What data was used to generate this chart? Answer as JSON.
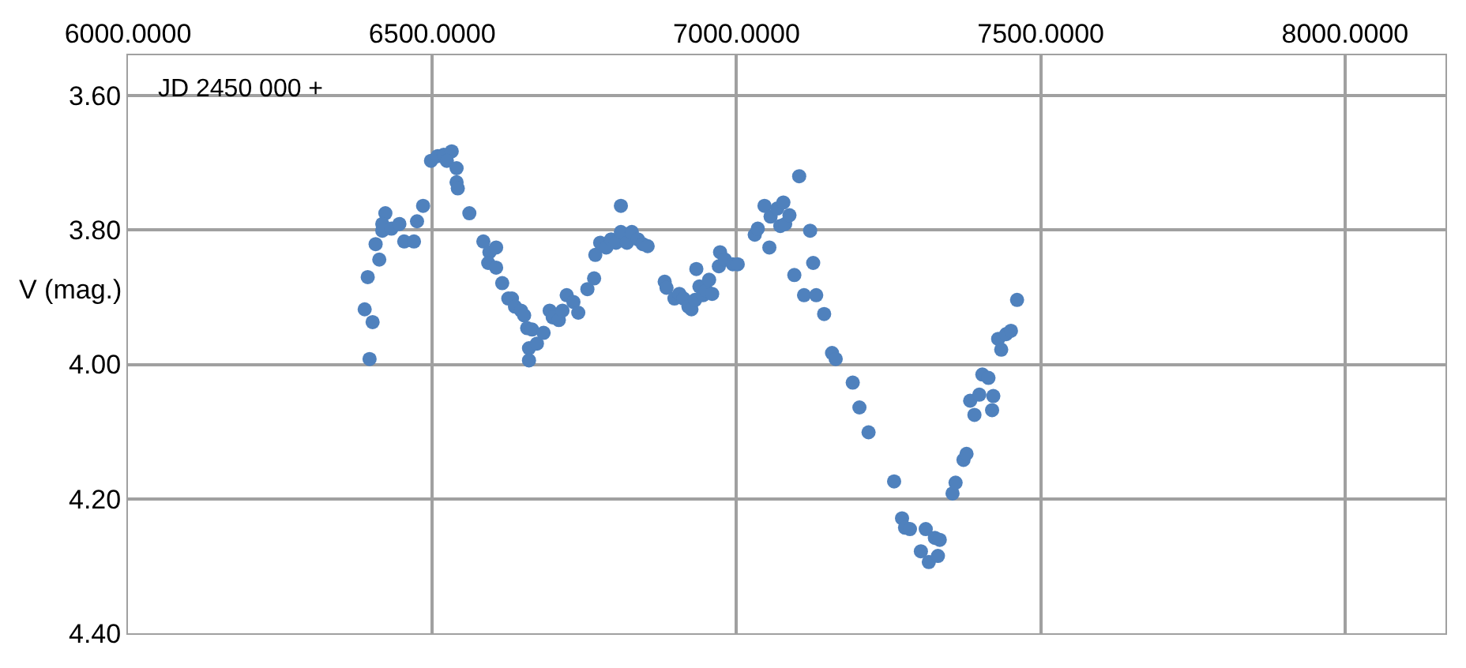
{
  "chart_data": {
    "type": "scatter",
    "ylabel": "V (mag.)",
    "annotations": [
      "JD 2450 000 +"
    ],
    "x": [
      6389,
      6397,
      6394,
      6402,
      6407,
      6413,
      6418,
      6423,
      6418,
      6433,
      6446,
      6454,
      6470,
      6475,
      6485,
      6498,
      6509,
      6519,
      6532,
      6524,
      6540,
      6540,
      6542,
      6561,
      6584,
      6594,
      6592,
      6605,
      6605,
      6615,
      6625,
      6631,
      6636,
      6646,
      6651,
      6656,
      6659,
      6659,
      6672,
      6664,
      6683,
      6693,
      6698,
      6708,
      6714,
      6721,
      6732,
      6740,
      6755,
      6766,
      6768,
      6776,
      6786,
      6794,
      6802,
      6810,
      6810,
      6820,
      6828,
      6838,
      6846,
      6854,
      6882,
      6885,
      6898,
      6906,
      6913,
      6921,
      6926,
      6932,
      6934,
      6939,
      6945,
      6950,
      6955,
      6960,
      6971,
      6973,
      6981,
      6994,
      7002,
      7030,
      7035,
      7046,
      7054,
      7056,
      7067,
      7072,
      7077,
      7080,
      7087,
      7095,
      7103,
      7111,
      7121,
      7126,
      7131,
      7144,
      7157,
      7163,
      7191,
      7202,
      7217,
      7259,
      7272,
      7277,
      7285,
      7303,
      7311,
      7316,
      7326,
      7331,
      7334,
      7355,
      7360,
      7373,
      7378,
      7384,
      7391,
      7399,
      7404,
      7414,
      7420,
      7422,
      7430,
      7435,
      7443,
      7451,
      7461
    ],
    "values": [
      3.918,
      3.992,
      3.87,
      3.937,
      3.821,
      3.844,
      3.801,
      3.775,
      3.791,
      3.798,
      3.791,
      3.817,
      3.817,
      3.787,
      3.764,
      3.697,
      3.69,
      3.688,
      3.683,
      3.697,
      3.708,
      3.729,
      3.738,
      3.775,
      3.817,
      3.833,
      3.849,
      3.826,
      3.856,
      3.879,
      3.902,
      3.902,
      3.914,
      3.92,
      3.927,
      3.946,
      3.976,
      3.994,
      3.969,
      3.948,
      3.953,
      3.92,
      3.93,
      3.934,
      3.92,
      3.897,
      3.907,
      3.923,
      3.888,
      3.872,
      3.837,
      3.819,
      3.826,
      3.814,
      3.819,
      3.803,
      3.764,
      3.819,
      3.803,
      3.814,
      3.821,
      3.824,
      3.877,
      3.886,
      3.902,
      3.895,
      3.902,
      3.914,
      3.918,
      3.904,
      3.858,
      3.884,
      3.897,
      3.89,
      3.874,
      3.895,
      3.854,
      3.833,
      3.844,
      3.851,
      3.851,
      3.807,
      3.798,
      3.764,
      3.826,
      3.78,
      3.768,
      3.794,
      3.759,
      3.791,
      3.778,
      3.867,
      3.72,
      3.897,
      3.801,
      3.849,
      3.897,
      3.925,
      3.983,
      3.992,
      4.027,
      4.064,
      4.101,
      4.174,
      4.229,
      4.243,
      4.245,
      4.278,
      4.245,
      4.294,
      4.258,
      4.285,
      4.261,
      4.192,
      4.176,
      4.142,
      4.133,
      4.054,
      4.075,
      4.045,
      4.015,
      4.02,
      4.068,
      4.047,
      3.962,
      3.978,
      3.955,
      3.95,
      3.904
    ],
    "color": "#4f81bd",
    "marker": "circle",
    "xlim": [
      6000,
      8165
    ],
    "ylim": [
      4.4,
      3.54
    ],
    "xticks": [
      {
        "value": 6000,
        "label": "6000.0000"
      },
      {
        "value": 6500,
        "label": "6500.0000"
      },
      {
        "value": 7000,
        "label": "7000.0000"
      },
      {
        "value": 7500,
        "label": "7500.0000"
      },
      {
        "value": 8000,
        "label": "8000.0000"
      }
    ],
    "yticks": [
      {
        "value": 3.6,
        "label": "3.60"
      },
      {
        "value": 3.8,
        "label": "3.80"
      },
      {
        "value": 4.0,
        "label": "4.00"
      },
      {
        "value": 4.2,
        "label": "4.20"
      },
      {
        "value": 4.4,
        "label": "4.40"
      }
    ],
    "grid": true,
    "legend": false
  }
}
